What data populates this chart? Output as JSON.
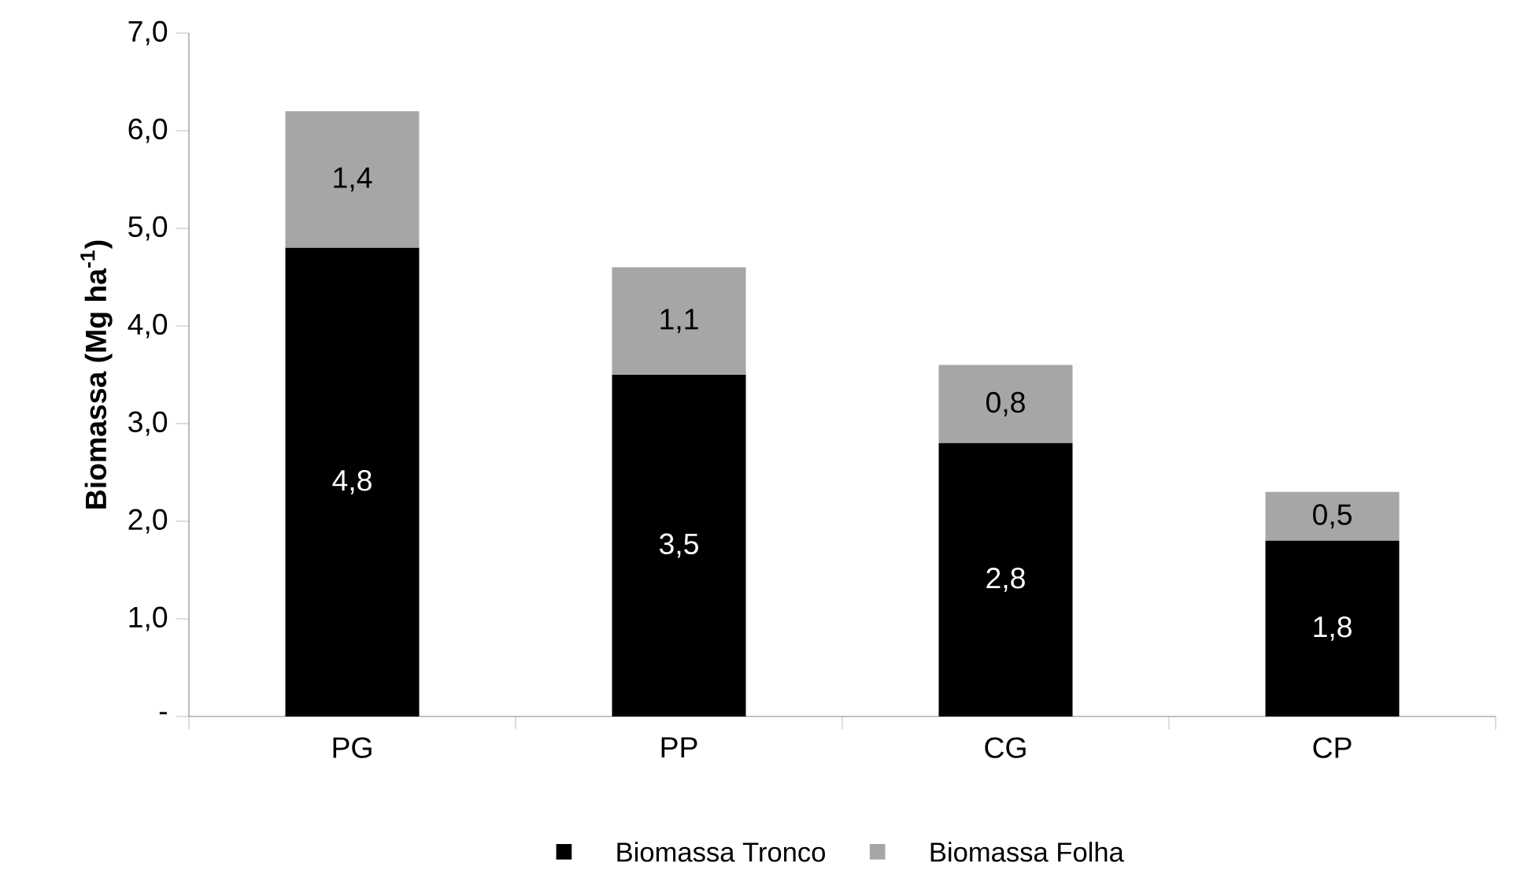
{
  "chart_data": {
    "type": "bar",
    "stacked": true,
    "ylabel": "Biomassa (Mg ha$^{-1}$)",
    "categories": [
      "PG",
      "PP",
      "CG",
      "CP"
    ],
    "series": [
      {
        "name": "Biomassa Tronco",
        "color": "#000000",
        "values": [
          4.8,
          3.5,
          2.8,
          1.8
        ],
        "value_labels": [
          "4,8",
          "3,5",
          "2,8",
          "1,8"
        ]
      },
      {
        "name": "Biomassa Folha",
        "color": "#a6a6a6",
        "values": [
          1.4,
          1.1,
          0.8,
          0.5
        ],
        "value_labels": [
          "1,4",
          "1,1",
          "0,8",
          "0,5"
        ]
      }
    ],
    "ylim": [
      0,
      7
    ],
    "yticks": [
      {
        "value": 0,
        "label": "-"
      },
      {
        "value": 1,
        "label": "1,0"
      },
      {
        "value": 2,
        "label": "2,0"
      },
      {
        "value": 3,
        "label": "3,0"
      },
      {
        "value": 4,
        "label": "4,0"
      },
      {
        "value": 5,
        "label": "5,0"
      },
      {
        "value": 6,
        "label": "6,0"
      },
      {
        "value": 7,
        "label": "7,0"
      }
    ],
    "legend": "bottom",
    "grid": false
  }
}
